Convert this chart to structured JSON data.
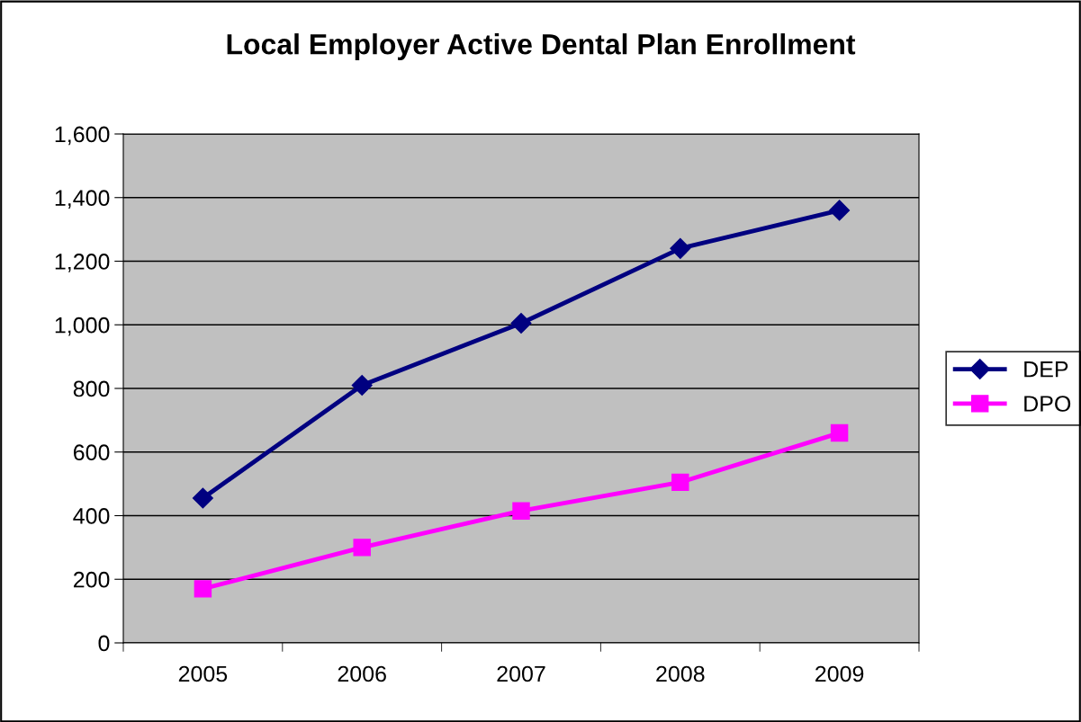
{
  "chart_data": {
    "type": "line",
    "title": "Local Employer Active Dental Plan Enrollment",
    "categories": [
      "2005",
      "2006",
      "2007",
      "2008",
      "2009"
    ],
    "series": [
      {
        "name": "DEP",
        "color": "#000080",
        "values": [
          455,
          810,
          1005,
          1240,
          1360
        ],
        "marker": "diamond"
      },
      {
        "name": "DPO",
        "color": "#ff00ff",
        "values": [
          170,
          300,
          415,
          505,
          660
        ],
        "marker": "square"
      }
    ],
    "ylim": [
      0,
      1600
    ],
    "yticks": [
      {
        "value": 0,
        "label": "0"
      },
      {
        "value": 200,
        "label": "200"
      },
      {
        "value": 400,
        "label": "400"
      },
      {
        "value": 600,
        "label": "600"
      },
      {
        "value": 800,
        "label": "800"
      },
      {
        "value": 1000,
        "label": "1,000"
      },
      {
        "value": 1200,
        "label": "1,200"
      },
      {
        "value": 1400,
        "label": "1,400"
      },
      {
        "value": 1600,
        "label": "1,600"
      }
    ],
    "grid": "y",
    "legend": "right",
    "line_style": "solid"
  }
}
